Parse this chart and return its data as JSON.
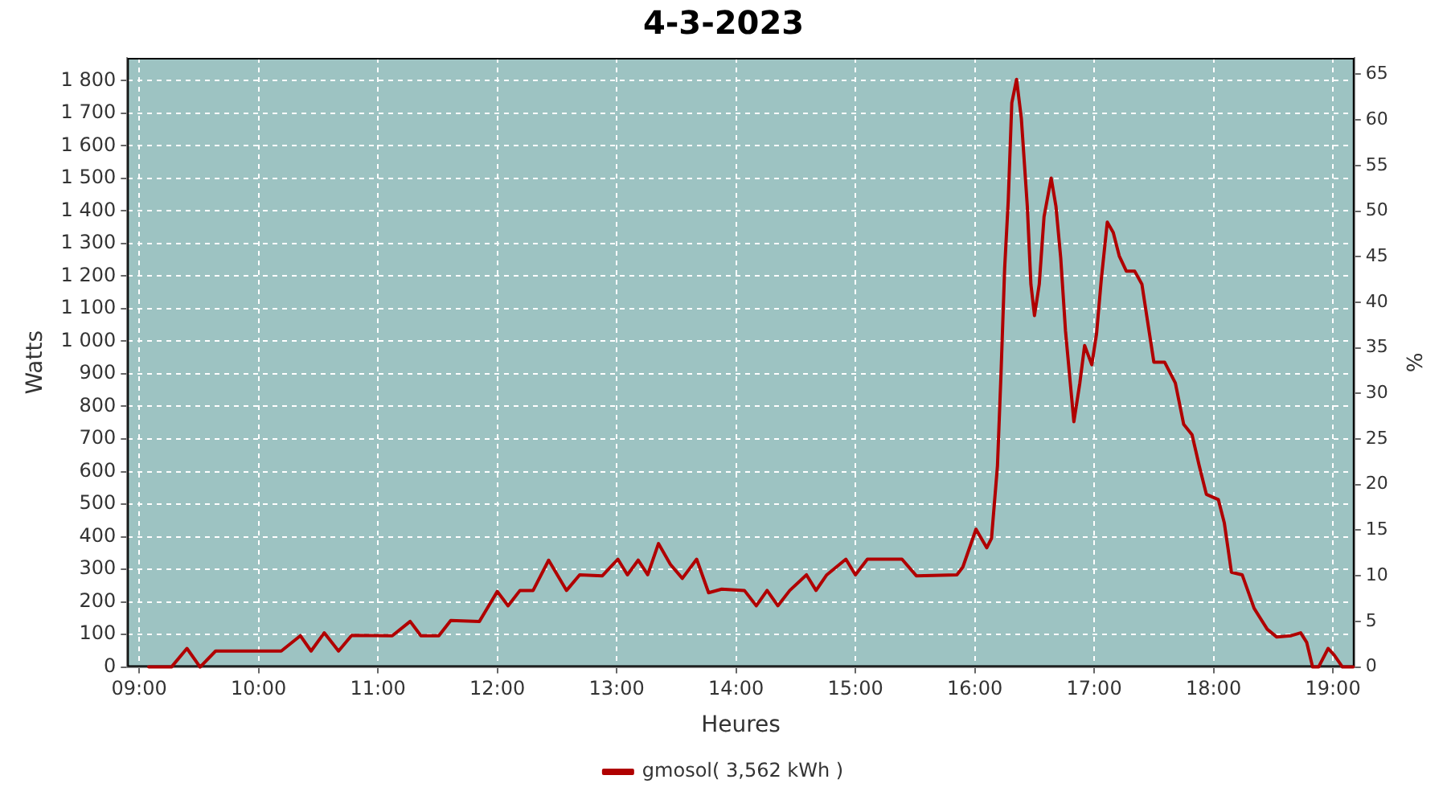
{
  "chart_data": {
    "type": "line",
    "title": "4-3-2023",
    "xlabel": "Heures",
    "ylabel": "Watts",
    "y2label": "%",
    "xlim": [
      8.9,
      19.18
    ],
    "xticks": [
      {
        "value": 9,
        "label": "09:00"
      },
      {
        "value": 10,
        "label": "10:00"
      },
      {
        "value": 11,
        "label": "11:00"
      },
      {
        "value": 12,
        "label": "12:00"
      },
      {
        "value": 13,
        "label": "13:00"
      },
      {
        "value": 14,
        "label": "14:00"
      },
      {
        "value": 15,
        "label": "15:00"
      },
      {
        "value": 16,
        "label": "16:00"
      },
      {
        "value": 17,
        "label": "17:00"
      },
      {
        "value": 18,
        "label": "18:00"
      },
      {
        "value": 19,
        "label": "19:00"
      }
    ],
    "ylim": [
      0,
      1870
    ],
    "yticks": [
      0,
      100,
      200,
      300,
      400,
      500,
      600,
      700,
      800,
      900,
      {
        "value": 1000,
        "label": "1 000"
      },
      {
        "value": 1100,
        "label": "1 100"
      },
      {
        "value": 1200,
        "label": "1 200"
      },
      {
        "value": 1300,
        "label": "1 300"
      },
      {
        "value": 1400,
        "label": "1 400"
      },
      {
        "value": 1500,
        "label": "1 500"
      },
      {
        "value": 1600,
        "label": "1 600"
      },
      {
        "value": 1700,
        "label": "1 700"
      },
      {
        "value": 1800,
        "label": "1 800"
      }
    ],
    "y2lim": [
      0,
      66.8
    ],
    "y2ticks": [
      0,
      5,
      10,
      15,
      20,
      25,
      30,
      35,
      40,
      45,
      50,
      55,
      60,
      65
    ],
    "grid": true,
    "legend": "bottom",
    "marker": "none",
    "line_style": "solid",
    "series": [
      {
        "name": "gmosol( 3,562 kWh )",
        "color": "#b00000",
        "x": [
          9.08,
          9.27,
          9.4,
          9.51,
          9.64,
          10.19,
          10.35,
          10.44,
          10.55,
          10.67,
          10.78,
          11.12,
          11.27,
          11.36,
          11.51,
          11.61,
          11.85,
          12.0,
          12.09,
          12.19,
          12.3,
          12.43,
          12.58,
          12.69,
          12.88,
          13.01,
          13.09,
          13.18,
          13.26,
          13.35,
          13.45,
          13.55,
          13.67,
          13.77,
          13.88,
          14.07,
          14.17,
          14.26,
          14.35,
          14.45,
          14.59,
          14.67,
          14.76,
          14.92,
          15.0,
          15.1,
          15.39,
          15.51,
          15.85,
          15.9,
          16.01,
          16.1,
          16.14,
          16.19,
          16.22,
          16.25,
          16.28,
          16.31,
          16.35,
          16.39,
          16.44,
          16.47,
          16.5,
          16.54,
          16.58,
          16.64,
          16.68,
          16.72,
          16.76,
          16.8,
          16.83,
          16.88,
          16.92,
          16.98,
          17.02,
          17.06,
          17.11,
          17.16,
          17.21,
          17.27,
          17.34,
          17.4,
          17.44,
          17.5,
          17.59,
          17.68,
          17.75,
          17.82,
          17.88,
          17.94,
          18.04,
          18.09,
          18.15,
          18.24,
          18.34,
          18.45,
          18.53,
          18.65,
          18.73,
          18.78,
          18.83,
          18.88,
          18.96,
          19.01,
          19.08,
          19.17
        ],
        "values": [
          0,
          0,
          57,
          0,
          49,
          49,
          96,
          49,
          105,
          49,
          97,
          96,
          140,
          96,
          96,
          143,
          140,
          232,
          188,
          235,
          235,
          328,
          235,
          283,
          280,
          331,
          283,
          328,
          283,
          379,
          315,
          272,
          331,
          228,
          239,
          235,
          188,
          235,
          188,
          235,
          283,
          235,
          283,
          331,
          283,
          331,
          331,
          280,
          283,
          307,
          423,
          366,
          395,
          618,
          904,
          1223,
          1430,
          1732,
          1804,
          1684,
          1414,
          1175,
          1079,
          1175,
          1382,
          1501,
          1414,
          1255,
          1031,
          872,
          753,
          872,
          987,
          928,
          1023,
          1191,
          1366,
          1334,
          1262,
          1215,
          1215,
          1175,
          1079,
          936,
          936,
          872,
          745,
          713,
          618,
          530,
          514,
          443,
          291,
          283,
          180,
          116,
          92,
          96,
          105,
          76,
          0,
          0,
          57,
          37,
          0,
          0
        ]
      }
    ]
  }
}
